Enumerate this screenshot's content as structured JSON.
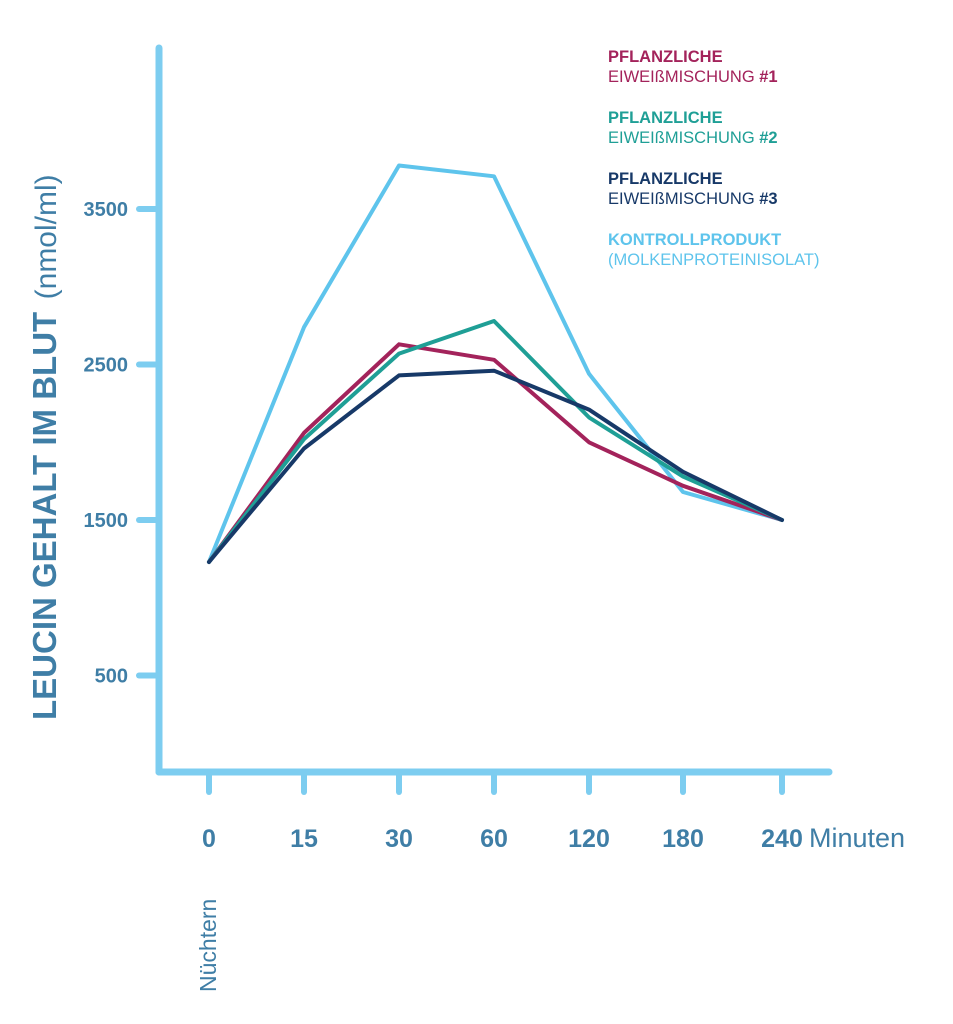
{
  "chart_data": {
    "type": "line",
    "categories": [
      "0",
      "15",
      "30",
      "60",
      "120",
      "180",
      "240"
    ],
    "x_unit": "Minuten",
    "x_note": "Nüchtern",
    "ylabel_main": "LEUCIN GEHALT IM BLUT",
    "ylabel_unit": "(nmol/ml)",
    "yticks": [
      "500",
      "1500",
      "2500",
      "3500"
    ],
    "ylim": [
      0,
      4700
    ],
    "grid": false,
    "legend_position": "top-right",
    "series": [
      {
        "name_line1": "PFLANZLICHE",
        "name_line2": "EIWEIßMISCHUNG",
        "name_suffix": " #1",
        "color": "#a3235b",
        "values": [
          1230,
          2060,
          2630,
          2530,
          2000,
          1720,
          1500
        ]
      },
      {
        "name_line1": "PFLANZLICHE",
        "name_line2": "EIWEIßMISCHUNG",
        "name_suffix": " #2",
        "color": "#1f9f96",
        "values": [
          1230,
          2020,
          2570,
          2780,
          2160,
          1780,
          1500
        ]
      },
      {
        "name_line1": "PFLANZLICHE",
        "name_line2": "EIWEIßMISCHUNG",
        "name_suffix": " #3",
        "color": "#173968",
        "values": [
          1230,
          1960,
          2430,
          2460,
          2210,
          1810,
          1500
        ]
      },
      {
        "name_line1": "KONTROLLPRODUKT",
        "name_line2": "(MOLKENPROTEINISOLAT)",
        "name_suffix": "",
        "color": "#5ec4ec",
        "values": [
          1230,
          2740,
          3780,
          3710,
          2440,
          1680,
          1500
        ]
      }
    ],
    "axis_color": "#7dcdf0",
    "label_color": "#3f7ea6"
  }
}
